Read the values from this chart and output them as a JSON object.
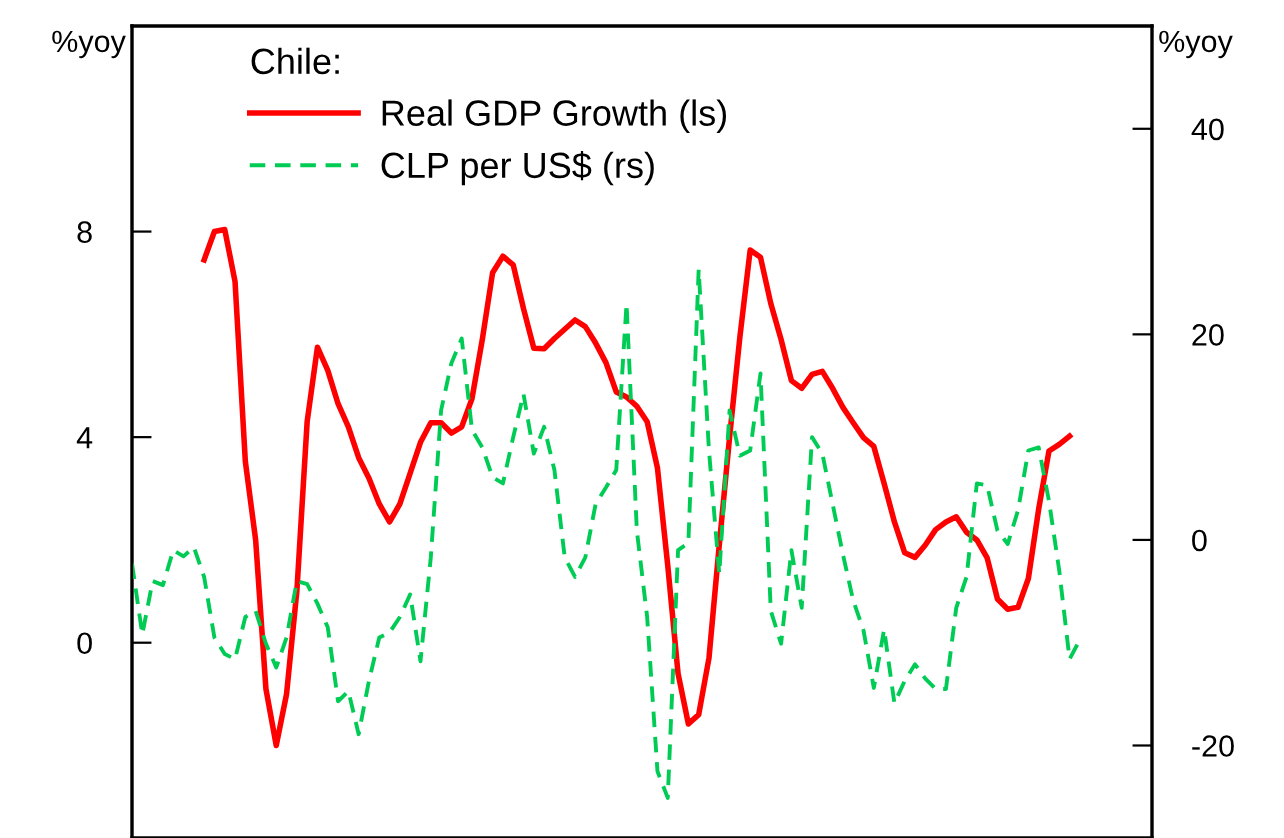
{
  "chart_data": {
    "type": "line",
    "ylabel": "%yoy",
    "y2label": "%yoy",
    "legend_title": "Chile:",
    "legend": "top",
    "grid": false,
    "marker": "none",
    "categories": [
      null,
      null,
      null,
      null,
      null,
      null,
      null,
      null,
      null,
      null,
      null,
      null,
      null,
      null,
      null,
      null,
      null,
      null,
      null,
      null,
      null,
      null,
      null,
      null,
      null,
      null,
      null,
      null,
      null,
      null,
      null,
      null,
      null,
      null,
      null,
      null,
      null,
      null,
      null,
      null,
      null,
      null,
      null,
      null,
      null,
      null,
      null,
      null,
      null,
      null,
      null,
      null,
      null,
      null,
      null,
      null,
      null,
      null,
      null,
      null,
      null,
      null,
      null,
      null,
      null,
      null,
      null,
      null,
      null,
      null,
      null,
      null,
      null,
      null,
      null,
      null,
      null,
      null,
      null,
      null,
      null,
      null,
      null,
      null,
      null,
      null,
      null,
      null,
      null,
      null,
      null,
      null,
      null,
      null,
      null,
      null,
      null,
      null,
      null,
      null
    ],
    "ylim": [
      -3.8,
      12
    ],
    "yticks": [
      0,
      4,
      8
    ],
    "y2lim": [
      -29,
      50
    ],
    "y2ticks": [
      -20,
      0,
      20,
      40
    ],
    "series": [
      {
        "name": "Real GDP Growth (ls)",
        "color": "#ff0000",
        "line_style": "solid",
        "values": [
          null,
          null,
          null,
          null,
          null,
          null,
          null,
          7.45,
          8.0,
          8.04,
          7.03,
          3.53,
          2.0,
          -0.9,
          -2.0,
          -1.0,
          1.0,
          4.3,
          5.75,
          5.3,
          4.65,
          4.2,
          3.6,
          3.2,
          2.7,
          2.35,
          2.7,
          3.3,
          3.9,
          4.28,
          4.28,
          4.08,
          4.2,
          4.75,
          5.9,
          7.2,
          7.52,
          7.35,
          6.5,
          5.73,
          5.72,
          5.92,
          6.1,
          6.28,
          6.15,
          5.83,
          5.45,
          4.88,
          4.78,
          4.6,
          4.3,
          3.4,
          1.5,
          -0.6,
          -1.58,
          -1.4,
          -0.3,
          1.9,
          4.0,
          5.95,
          7.64,
          7.5,
          6.6,
          5.9,
          5.1,
          4.95,
          5.22,
          5.28,
          4.95,
          4.58,
          4.28,
          3.99,
          3.82,
          3.1,
          2.35,
          1.75,
          1.66,
          1.9,
          2.2,
          2.35,
          2.45,
          2.15,
          2.0,
          1.65,
          0.85,
          0.65,
          0.69,
          1.25,
          2.6,
          3.73,
          3.86,
          4.02,
          null,
          null,
          null,
          null,
          null,
          null,
          null,
          null
        ]
      },
      {
        "name": "CLP per US$ (rs)",
        "color": "#00cc55",
        "line_style": "dashed",
        "axis": "y2",
        "values": [
          -2.3,
          -9.2,
          -4.0,
          -4.4,
          -1.0,
          -1.6,
          -0.7,
          -3.6,
          -9.5,
          -11.1,
          -11.6,
          -7.5,
          -6.9,
          -10.1,
          -12.4,
          -9.5,
          -4.0,
          -4.3,
          -6.2,
          -8.5,
          -15.7,
          -14.7,
          -18.9,
          -13.7,
          -9.5,
          -9.0,
          -7.5,
          -5.3,
          -11.8,
          -1.7,
          12.6,
          17.2,
          19.6,
          10.7,
          9.0,
          6.1,
          5.5,
          10.0,
          14.2,
          8.4,
          11.0,
          6.8,
          -1.7,
          -3.6,
          -1.7,
          3.5,
          5.1,
          6.8,
          23.0,
          0.9,
          -7.5,
          -22.5,
          -25.1,
          -1.0,
          -0.3,
          26.3,
          8.7,
          -3.3,
          12.6,
          8.2,
          8.7,
          16.2,
          -6.9,
          -10.1,
          -1.0,
          -6.6,
          10.0,
          8.4,
          3.5,
          -1.4,
          -5.9,
          -8.8,
          -14.4,
          -8.7,
          -15.9,
          -13.7,
          -12.1,
          -13.5,
          -14.5,
          -14.5,
          -6.6,
          -3.6,
          5.5,
          5.3,
          0.9,
          -0.4,
          2.9,
          8.7,
          9.0,
          3.8,
          -3.0,
          -11.6,
          -9.7,
          null,
          null,
          null,
          null,
          null,
          null,
          null
        ]
      }
    ]
  }
}
